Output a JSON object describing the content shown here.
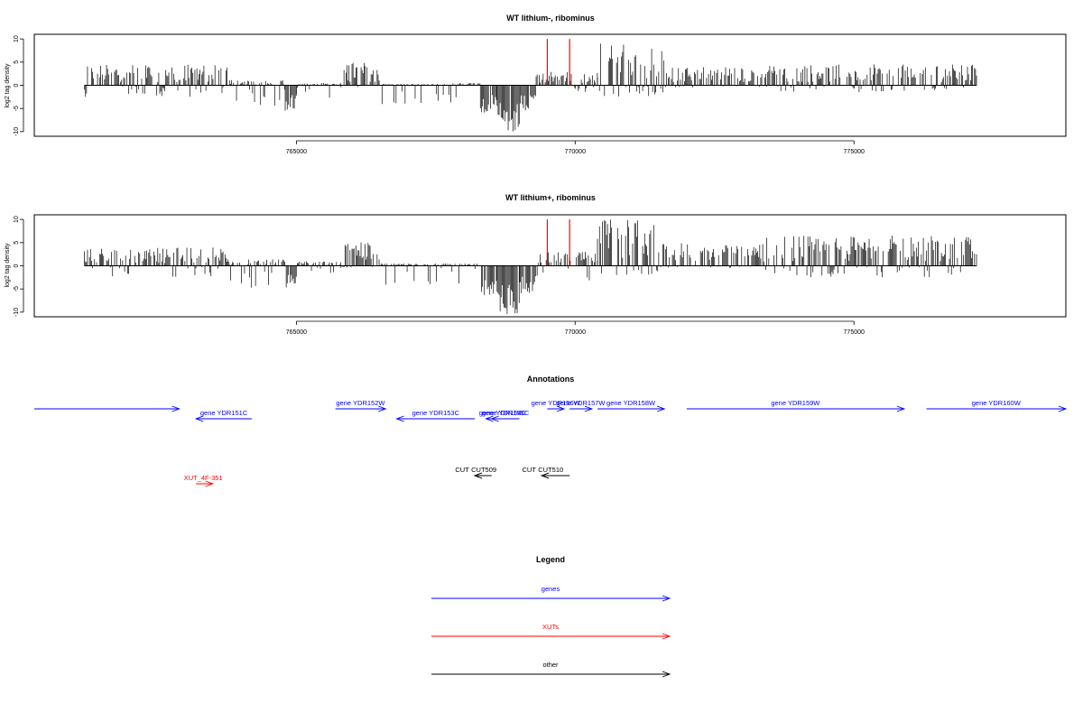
{
  "colors": {
    "axis": "#000000",
    "bars": "#000000",
    "marker": "#ff0000",
    "genes": "#0000ff",
    "xuts": "#ff0000",
    "other": "#000000"
  },
  "chart_data": [
    {
      "type": "bar",
      "title": "WT lithium-, ribominus",
      "xlabel": "",
      "ylabel": "log2 tag density",
      "xlim": [
        760300,
        778800
      ],
      "ylim": [
        -11,
        11
      ],
      "x_ticks": [
        765000,
        770000,
        775000
      ],
      "y_ticks": [
        10,
        5,
        0,
        -5,
        -10
      ],
      "grid": false,
      "markers_x": [
        769500,
        769900
      ],
      "profile": [
        {
          "from": 761200,
          "to": 763800,
          "max": 4.5,
          "min": -2.5
        },
        {
          "from": 763800,
          "to": 764800,
          "max": 1.2,
          "min": -4.5
        },
        {
          "from": 764800,
          "to": 765000,
          "max": 0.8,
          "min": -5.5
        },
        {
          "from": 765000,
          "to": 765800,
          "max": 0.5,
          "min": -3
        },
        {
          "from": 765800,
          "to": 766500,
          "max": 5,
          "min": -0.5
        },
        {
          "from": 766500,
          "to": 767700,
          "max": 0.3,
          "min": -4.5
        },
        {
          "from": 767700,
          "to": 768300,
          "max": 0.5,
          "min": -4
        },
        {
          "from": 768300,
          "to": 768600,
          "max": 0.8,
          "min": -6
        },
        {
          "from": 768600,
          "to": 769000,
          "max": 1,
          "min": -10.5
        },
        {
          "from": 769000,
          "to": 769300,
          "max": 0.5,
          "min": -6
        },
        {
          "from": 769300,
          "to": 770400,
          "max": 3,
          "min": -1.5
        },
        {
          "from": 770400,
          "to": 771600,
          "max": 9,
          "min": -2.5
        },
        {
          "from": 771600,
          "to": 773400,
          "max": 4,
          "min": -0.5
        },
        {
          "from": 773400,
          "to": 777200,
          "max": 4.5,
          "min": -1.5
        }
      ]
    },
    {
      "type": "bar",
      "title": "WT lithium+, ribominus",
      "xlabel": "",
      "ylabel": "log2 tag density",
      "xlim": [
        760300,
        778800
      ],
      "ylim": [
        -11,
        11
      ],
      "x_ticks": [
        765000,
        770000,
        775000
      ],
      "y_ticks": [
        10,
        5,
        0,
        -5,
        -10
      ],
      "grid": false,
      "markers_x": [
        769500,
        769900
      ],
      "profile": [
        {
          "from": 761200,
          "to": 763800,
          "max": 4,
          "min": -2.5
        },
        {
          "from": 763800,
          "to": 764800,
          "max": 1.5,
          "min": -5
        },
        {
          "from": 764800,
          "to": 765000,
          "max": 1,
          "min": -5.5
        },
        {
          "from": 765000,
          "to": 765800,
          "max": 1,
          "min": -3
        },
        {
          "from": 765800,
          "to": 766500,
          "max": 5.5,
          "min": -0.5
        },
        {
          "from": 766500,
          "to": 767700,
          "max": 0.5,
          "min": -5
        },
        {
          "from": 767700,
          "to": 768300,
          "max": 0.5,
          "min": -4.5
        },
        {
          "from": 768300,
          "to": 768600,
          "max": 0.8,
          "min": -6.5
        },
        {
          "from": 768600,
          "to": 769000,
          "max": 1,
          "min": -10.5
        },
        {
          "from": 769000,
          "to": 769300,
          "max": 0.5,
          "min": -6
        },
        {
          "from": 769300,
          "to": 770400,
          "max": 3,
          "min": -3.5
        },
        {
          "from": 770400,
          "to": 771600,
          "max": 10,
          "min": -2
        },
        {
          "from": 771600,
          "to": 773400,
          "max": 5,
          "min": -0.5
        },
        {
          "from": 773400,
          "to": 777200,
          "max": 6.5,
          "min": -2.5
        }
      ]
    }
  ],
  "annotations": {
    "title": "Annotations",
    "genes": [
      {
        "label": "",
        "from": 760300,
        "to": 762900,
        "dir": "+",
        "row": 0
      },
      {
        "label": "gene YDR151C",
        "from": 763200,
        "to": 764200,
        "dir": "-",
        "row": 1
      },
      {
        "label": "gene YDR152W",
        "from": 765700,
        "to": 766600,
        "dir": "+",
        "row": 0
      },
      {
        "label": "gene YDR153C",
        "from": 766800,
        "to": 768200,
        "dir": "-",
        "row": 1
      },
      {
        "label": "gene YDR154C",
        "from": 768400,
        "to": 769000,
        "dir": "-",
        "row": 1
      },
      {
        "label": "gene YDR155C",
        "from": 768500,
        "to": 769000,
        "dir": "-",
        "row": 1
      },
      {
        "label": "gene YDR156W",
        "from": 769500,
        "to": 769800,
        "dir": "+",
        "row": 0
      },
      {
        "label": "gene YDR157W",
        "from": 769900,
        "to": 770300,
        "dir": "+",
        "row": 0
      },
      {
        "label": "gene YDR158W",
        "from": 770400,
        "to": 771600,
        "dir": "+",
        "row": 0
      },
      {
        "label": "gene YDR159W",
        "from": 772000,
        "to": 775900,
        "dir": "+",
        "row": 0
      },
      {
        "label": "gene YDR160W",
        "from": 776300,
        "to": 778800,
        "dir": "+",
        "row": 0
      }
    ],
    "xuts": [
      {
        "label": "XUT_4F-351",
        "from": 763200,
        "to": 763500,
        "dir": "+",
        "row": 3
      }
    ],
    "other": [
      {
        "label": "CUT",
        "from": 768200,
        "to": 768500,
        "dir": "-",
        "row": 2
      },
      {
        "label": "CUT509",
        "from": 768200,
        "to": 768500,
        "dir": "-",
        "row": 2
      },
      {
        "label": "CUT",
        "from": 769400,
        "to": 769900,
        "dir": "-",
        "row": 2
      },
      {
        "label": "CUT510",
        "from": 769400,
        "to": 769900,
        "dir": "-",
        "row": 2
      }
    ]
  },
  "legend": {
    "title": "Legend",
    "items": [
      {
        "label": "genes",
        "color_key": "genes"
      },
      {
        "label": "XUTs",
        "color_key": "xuts"
      },
      {
        "label": "other",
        "color_key": "other"
      }
    ]
  }
}
